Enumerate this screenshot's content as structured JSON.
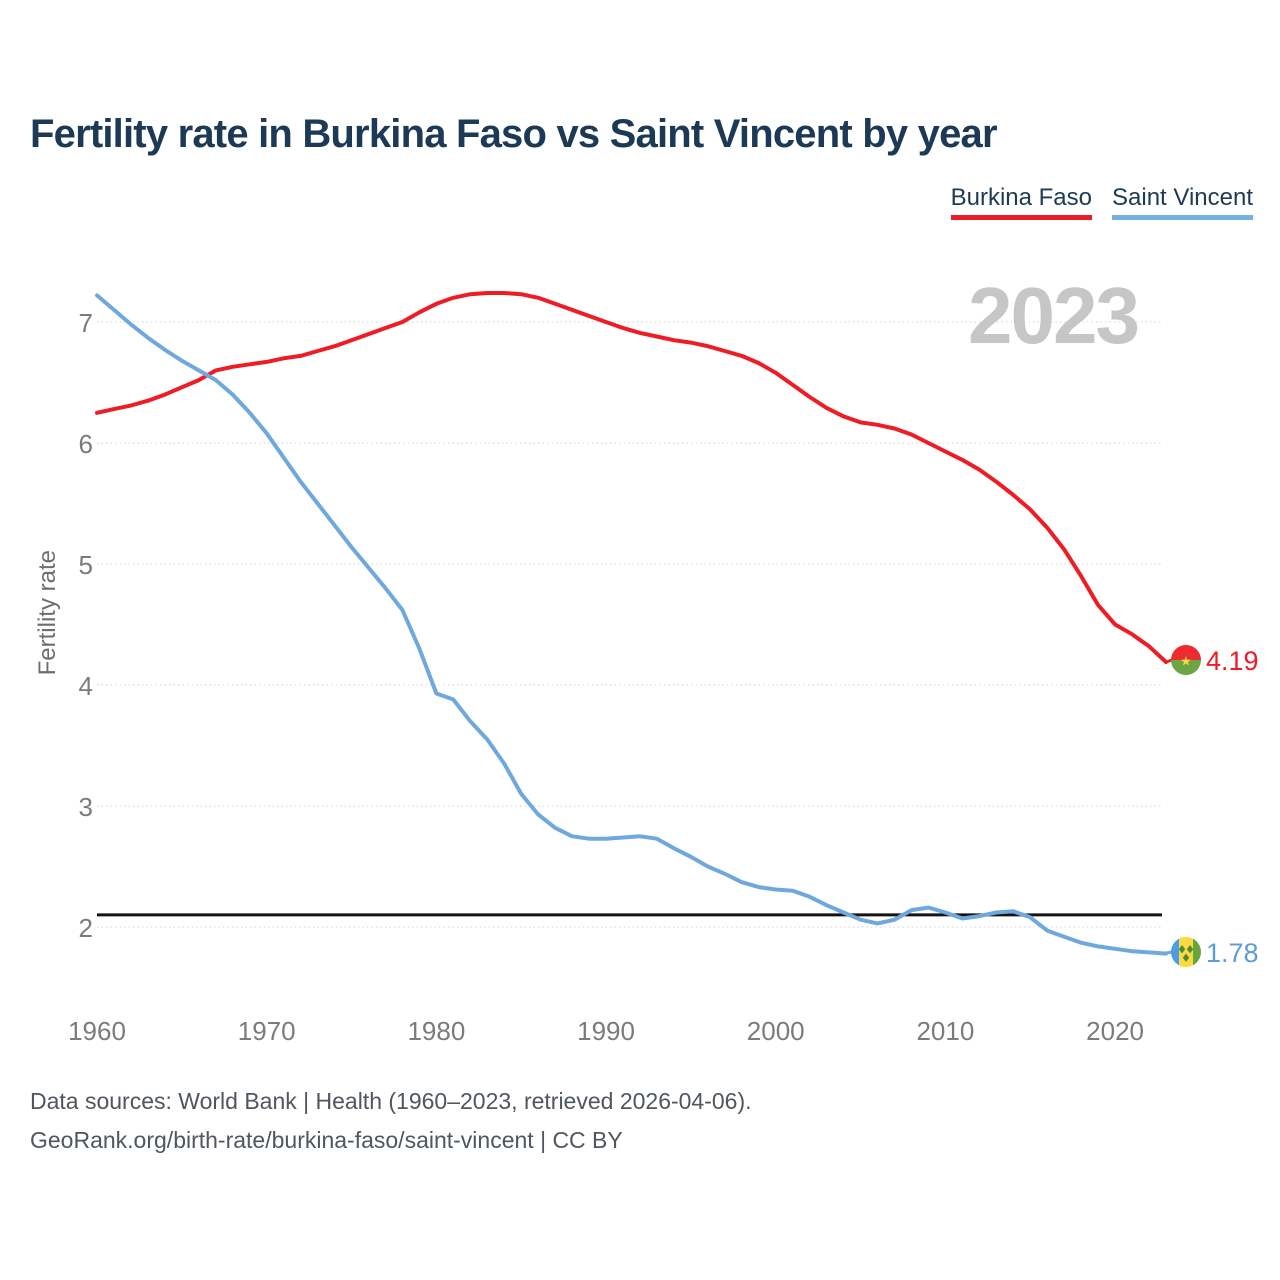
{
  "title": "Fertility rate in Burkina Faso vs Saint Vincent by year",
  "watermark": "2023",
  "legend": [
    {
      "label": "Burkina Faso",
      "color": "#ee1c25"
    },
    {
      "label": "Saint Vincent",
      "color": "#74b0e2"
    }
  ],
  "y_axis": {
    "label": "Fertility rate",
    "ticks": [
      7,
      6,
      5,
      4,
      3,
      2
    ]
  },
  "x_axis": {
    "ticks": [
      1960,
      1970,
      1980,
      1990,
      2000,
      2010,
      2020
    ]
  },
  "end_labels": [
    {
      "series": "Burkina Faso",
      "value": "4.19",
      "flag": "burkina-faso-flag",
      "color": "#ee1c25"
    },
    {
      "series": "Saint Vincent",
      "value": "1.78",
      "flag": "saint-vincent-flag",
      "color": "#5b9cd9"
    }
  ],
  "footer": {
    "line1": "Data sources: World Bank | Health (1960–2023, retrieved 2026-04-06).",
    "line2": "GeoRank.org/birth-rate/burkina-faso/saint-vincent | CC BY"
  },
  "chart_data": {
    "type": "line",
    "title": "Fertility rate in Burkina Faso vs Saint Vincent by year",
    "xlabel": "",
    "ylabel": "Fertility rate",
    "xlim": [
      1960,
      2023
    ],
    "ylim": [
      1.6,
      7.45
    ],
    "grid": "horizontal-dotted",
    "legend_position": "top-right",
    "reference_line": {
      "value": 2.1,
      "color": "#141414",
      "note": "replacement-level line"
    },
    "x": [
      1960,
      1961,
      1962,
      1963,
      1964,
      1965,
      1966,
      1967,
      1968,
      1969,
      1970,
      1971,
      1972,
      1973,
      1974,
      1975,
      1976,
      1977,
      1978,
      1979,
      1980,
      1981,
      1982,
      1983,
      1984,
      1985,
      1986,
      1987,
      1988,
      1989,
      1990,
      1991,
      1992,
      1993,
      1994,
      1995,
      1996,
      1997,
      1998,
      1999,
      2000,
      2001,
      2002,
      2003,
      2004,
      2005,
      2006,
      2007,
      2008,
      2009,
      2010,
      2011,
      2012,
      2013,
      2014,
      2015,
      2016,
      2017,
      2018,
      2019,
      2020,
      2021,
      2022,
      2023
    ],
    "series": [
      {
        "name": "Burkina Faso",
        "color": "#ee1c25",
        "end_value": 4.19,
        "values": [
          6.25,
          6.28,
          6.31,
          6.35,
          6.4,
          6.46,
          6.52,
          6.6,
          6.63,
          6.65,
          6.67,
          6.7,
          6.72,
          6.76,
          6.8,
          6.85,
          6.9,
          6.95,
          7.0,
          7.08,
          7.15,
          7.2,
          7.23,
          7.24,
          7.24,
          7.23,
          7.2,
          7.15,
          7.1,
          7.05,
          7.0,
          6.95,
          6.91,
          6.88,
          6.85,
          6.83,
          6.8,
          6.76,
          6.72,
          6.66,
          6.58,
          6.48,
          6.38,
          6.29,
          6.22,
          6.17,
          6.15,
          6.12,
          6.07,
          6.0,
          5.93,
          5.86,
          5.78,
          5.68,
          5.57,
          5.45,
          5.3,
          5.12,
          4.9,
          4.66,
          4.5,
          4.42,
          4.32,
          4.19
        ]
      },
      {
        "name": "Saint Vincent",
        "color": "#6fa8dc",
        "end_value": 1.78,
        "values": [
          7.22,
          7.1,
          6.98,
          6.87,
          6.77,
          6.68,
          6.6,
          6.52,
          6.4,
          6.25,
          6.08,
          5.88,
          5.68,
          5.5,
          5.32,
          5.14,
          4.97,
          4.8,
          4.62,
          4.3,
          3.93,
          3.88,
          3.7,
          3.55,
          3.35,
          3.1,
          2.93,
          2.82,
          2.75,
          2.73,
          2.73,
          2.74,
          2.75,
          2.73,
          2.65,
          2.58,
          2.5,
          2.44,
          2.37,
          2.33,
          2.31,
          2.3,
          2.25,
          2.18,
          2.12,
          2.06,
          2.03,
          2.06,
          2.14,
          2.16,
          2.12,
          2.07,
          2.09,
          2.12,
          2.13,
          2.08,
          1.97,
          1.92,
          1.87,
          1.84,
          1.82,
          1.8,
          1.79,
          1.78
        ]
      }
    ]
  }
}
